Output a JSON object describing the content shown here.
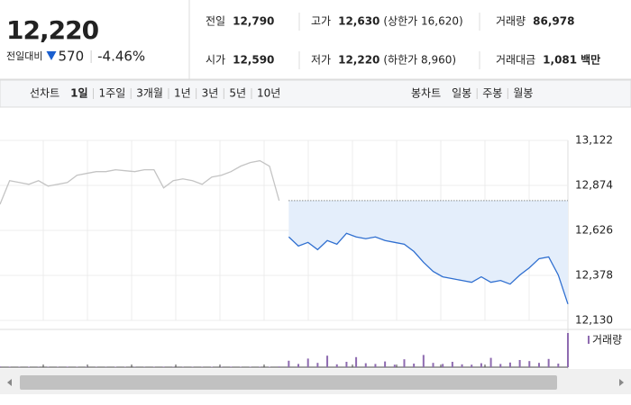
{
  "summary": {
    "price": "12,220",
    "change_label": "전일대비",
    "change": "570",
    "change_rate": "-4.46%",
    "color": "#1a5fcf"
  },
  "quotes": [
    {
      "label": "전일",
      "value": "12,790",
      "color": "#222222"
    },
    {
      "label": "고가",
      "value": "12,630",
      "note": "(상한가 16,620)",
      "color": "#1a5fcf"
    },
    {
      "label": "거래량",
      "value": "86,978",
      "color": "#222222"
    },
    {
      "label": "시가",
      "value": "12,590",
      "color": "#1a5fcf"
    },
    {
      "label": "저가",
      "value": "12,220",
      "note": "(하한가 8,960)",
      "color": "#1a5fcf"
    },
    {
      "label": "거래대금",
      "value": "1,081",
      "note": "백만",
      "color": "#222222"
    }
  ],
  "toolbar": {
    "line_label": "선차트",
    "periods": [
      "1일",
      "1주일",
      "3개월",
      "1년",
      "3년",
      "5년",
      "10년"
    ],
    "selected": 0,
    "candle_label": "봉차트",
    "candles": [
      "일봉",
      "주봉",
      "월봉"
    ]
  },
  "chart_data": {
    "type": "line",
    "x": [
      0,
      1,
      2,
      3,
      4,
      5,
      6,
      7,
      8,
      9,
      10,
      11,
      12,
      13,
      14,
      15,
      16,
      17,
      18,
      19,
      20,
      21,
      22,
      23,
      24,
      25,
      26,
      27,
      28,
      29,
      30,
      31,
      32,
      33,
      34,
      35,
      36,
      37,
      38,
      39,
      40,
      41,
      42,
      43,
      44,
      45,
      46,
      47,
      48,
      49,
      50,
      51,
      52,
      53,
      54,
      55,
      56,
      57,
      58,
      59
    ],
    "xlim": [
      0,
      59
    ],
    "ylim": [
      12130,
      13122
    ],
    "yticks": [
      {
        "value": 13122,
        "label": "13,122"
      },
      {
        "value": 12874,
        "label": "12,874"
      },
      {
        "value": 12626,
        "label": "12,626"
      },
      {
        "value": 12378,
        "label": "12,378"
      },
      {
        "value": 12130,
        "label": "12,130"
      }
    ],
    "grid": true,
    "reference": {
      "value": 12790,
      "fill": "#e4eefb"
    },
    "series": [
      {
        "color": "#c4c4c4",
        "values": [
          12770,
          12900,
          12890,
          12880,
          12900,
          12870,
          12880,
          12890,
          12930,
          12940,
          12950,
          12950,
          12960,
          12955,
          12950,
          12960,
          12960,
          12860,
          12900,
          12910,
          12900,
          12880,
          12920,
          12930,
          12950,
          12980,
          13000,
          13010,
          12980,
          12790,
          null,
          null,
          null,
          null,
          null,
          null,
          null,
          null,
          null,
          null,
          null,
          null,
          null,
          null,
          null,
          null,
          null,
          null,
          null,
          null,
          null,
          null,
          null,
          null,
          null,
          null,
          null,
          null,
          null,
          null
        ]
      },
      {
        "color": "#2f6fd0",
        "values": [
          null,
          null,
          null,
          null,
          null,
          null,
          null,
          null,
          null,
          null,
          null,
          null,
          null,
          null,
          null,
          null,
          null,
          null,
          null,
          null,
          null,
          null,
          null,
          null,
          null,
          null,
          null,
          null,
          null,
          null,
          12590,
          12540,
          12560,
          12520,
          12570,
          12550,
          12610,
          12590,
          12580,
          12590,
          12570,
          12560,
          12550,
          12510,
          12450,
          12400,
          12370,
          12360,
          12350,
          12340,
          12370,
          12340,
          12350,
          12330,
          12380,
          12420,
          12470,
          12480,
          12380,
          12220
        ]
      }
    ],
    "volume": {
      "name": "거래량",
      "color": "#8e6bb0",
      "ylim": [
        0,
        10000
      ],
      "values": [
        200,
        150,
        100,
        120,
        80,
        100,
        90,
        150,
        110,
        100,
        90,
        80,
        120,
        100,
        90,
        80,
        100,
        150,
        90,
        80,
        100,
        90,
        120,
        110,
        150,
        100,
        130,
        140,
        120,
        200,
        1800,
        900,
        2400,
        1200,
        3200,
        800,
        1500,
        2800,
        1100,
        900,
        1600,
        700,
        2200,
        1000,
        3400,
        1200,
        900,
        1500,
        800,
        700,
        1100,
        2600,
        900,
        1300,
        2000,
        1700,
        1200,
        2300,
        1000,
        9500
      ]
    }
  }
}
